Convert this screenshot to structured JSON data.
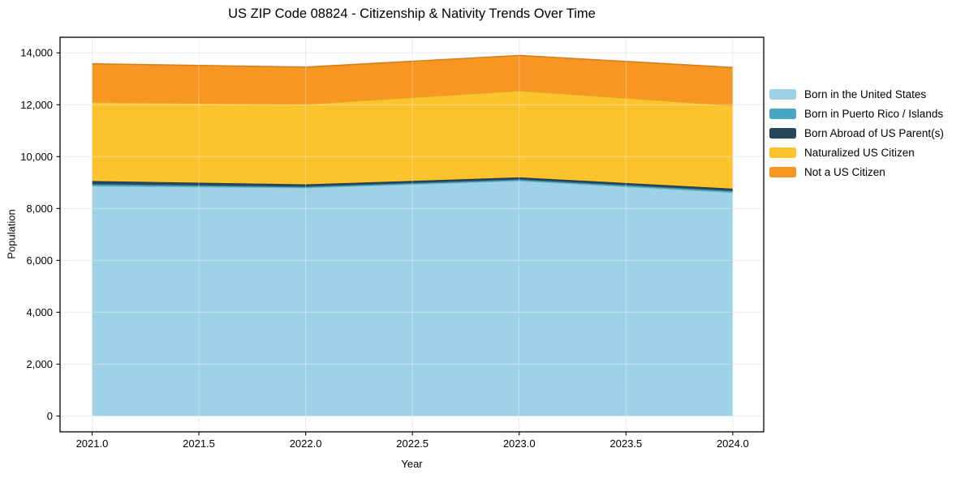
{
  "chart_data": {
    "type": "area",
    "stacked": true,
    "title": "US ZIP Code 08824 - Citizenship & Nativity Trends Over Time",
    "xlabel": "Year",
    "ylabel": "Population",
    "x": [
      2021,
      2022,
      2023,
      2024
    ],
    "series": [
      {
        "name": "Born in the United States",
        "color": "#9DD2E7",
        "values": [
          8870,
          8800,
          9070,
          8620
        ]
      },
      {
        "name": "Born in Puerto Rico / Islands",
        "color": "#46A7C5",
        "values": [
          65,
          40,
          45,
          55
        ]
      },
      {
        "name": "Born Abroad of US Parent(s)",
        "color": "#26475C",
        "values": [
          125,
          90,
          85,
          90
        ]
      },
      {
        "name": "Naturalized US Citizen",
        "color": "#FCC32D",
        "values": [
          3040,
          3095,
          3345,
          3210
        ]
      },
      {
        "name": "Not a US Citizen",
        "color": "#F79622",
        "values": [
          1480,
          1425,
          1355,
          1460
        ]
      }
    ],
    "totals": [
      13580,
      13450,
      13900,
      13435
    ],
    "xticks": [
      2021.0,
      2021.5,
      2022.0,
      2022.5,
      2023.0,
      2023.5,
      2024.0
    ],
    "xtick_labels": [
      "2021.0",
      "2021.5",
      "2022.0",
      "2022.5",
      "2023.0",
      "2023.5",
      "2024.0"
    ],
    "yticks": [
      0,
      2000,
      4000,
      6000,
      8000,
      10000,
      12000,
      14000
    ],
    "ytick_labels": [
      "0",
      "2,000",
      "4,000",
      "6,000",
      "8,000",
      "10,000",
      "12,000",
      "14,000"
    ],
    "xlim": [
      2020.85,
      2024.145
    ],
    "ylim": [
      -609,
      14600
    ],
    "grid": true,
    "legend_position": "right-outside"
  }
}
